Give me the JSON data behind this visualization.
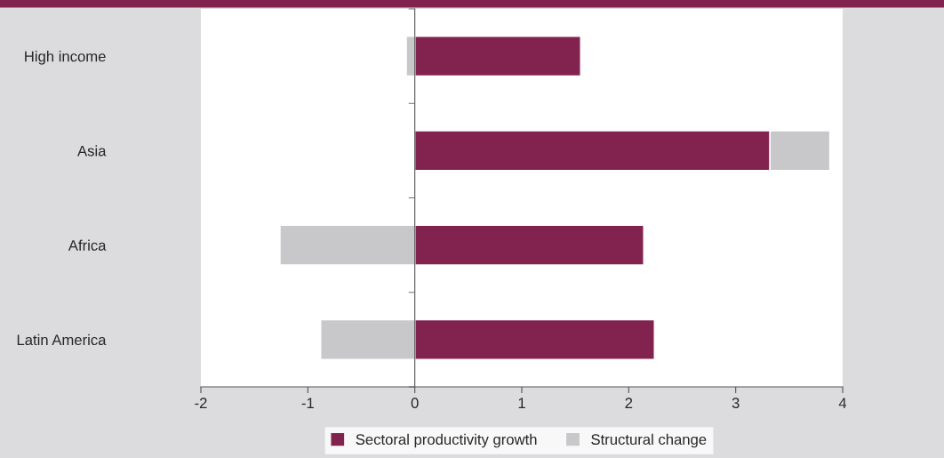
{
  "chart_data": {
    "type": "bar",
    "orientation": "horizontal",
    "stacked": true,
    "categories": [
      "High income",
      "Asia",
      "Africa",
      "Latin America"
    ],
    "series": [
      {
        "name": "Sectoral productivity growth",
        "color": "#82234f",
        "values": [
          1.55,
          3.32,
          2.14,
          2.24
        ]
      },
      {
        "name": "Structural change",
        "color": "#c8c8ca",
        "values": [
          -0.08,
          0.56,
          -1.26,
          -0.88
        ]
      }
    ],
    "xlim": [
      -2,
      4
    ],
    "xticks": [
      -2,
      -1,
      0,
      1,
      2,
      3,
      4
    ],
    "legend": "bottom"
  }
}
